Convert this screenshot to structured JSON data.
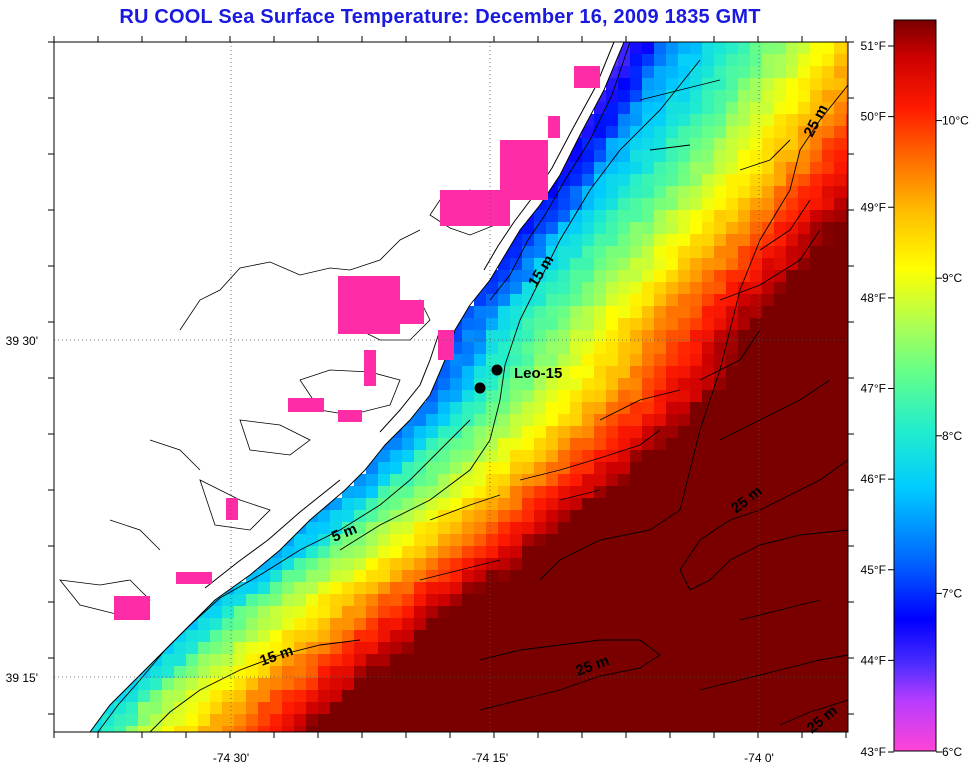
{
  "title": "RU COOL  Sea Surface Temperature:  December 16, 2009 1835 GMT",
  "map": {
    "lon_labels": [
      "-74 30'",
      "-74 15'",
      "-74 0'"
    ],
    "lat_labels": [
      "39 30'",
      "39 15'"
    ],
    "contour_labels": [
      "5 m",
      "15 m",
      "15 m",
      "25 m",
      "25 m",
      "25 m",
      "25 m"
    ],
    "station": {
      "name": "Leo-15"
    }
  },
  "colorbar": {
    "fahrenheit_labels": [
      "51°F",
      "50°F",
      "49°F",
      "48°F",
      "47°F",
      "46°F",
      "45°F",
      "44°F",
      "43°F"
    ],
    "celsius_labels": [
      "10°C",
      "9°C",
      "8°C",
      "7°C",
      "6°C"
    ],
    "range_celsius": [
      6,
      10.6
    ],
    "range_fahrenheit": [
      43,
      51
    ]
  }
}
